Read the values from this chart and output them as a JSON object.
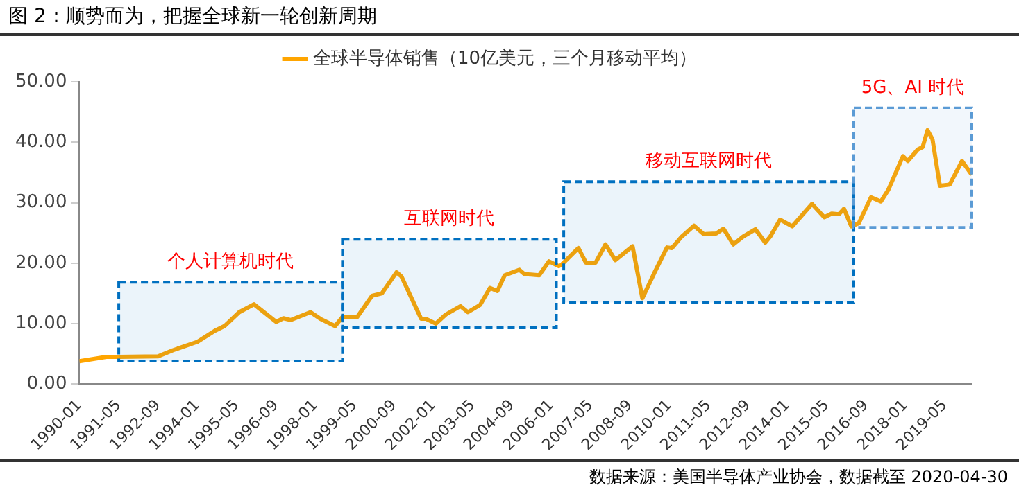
{
  "chart_data": {
    "type": "line",
    "title": "图 2：顺势而为，把握全球新一轮创新周期",
    "x": [
      "1990-01",
      "1990-12",
      "1991-05",
      "1992-09",
      "1993-03",
      "1994-01",
      "1994-08",
      "1994-12",
      "1995-06",
      "1995-12",
      "1996-09",
      "1996-12",
      "1997-03",
      "1997-11",
      "1998-03",
      "1998-09",
      "1998-12",
      "1999-06",
      "1999-12",
      "2000-04",
      "2000-10",
      "2000-12",
      "2001-08",
      "2001-10",
      "2002-02",
      "2002-06",
      "2002-12",
      "2003-03",
      "2003-08",
      "2003-12",
      "2004-03",
      "2004-06",
      "2004-12",
      "2005-02",
      "2005-08",
      "2005-12",
      "2006-04",
      "2006-05",
      "2006-12",
      "2007-03",
      "2007-07",
      "2007-11",
      "2008-03",
      "2008-10",
      "2009-02",
      "2009-07",
      "2009-12",
      "2010-02",
      "2010-06",
      "2010-11",
      "2011-03",
      "2011-08",
      "2011-11",
      "2012-03",
      "2012-07",
      "2012-12",
      "2013-04",
      "2013-06",
      "2013-10",
      "2014-03",
      "2014-11",
      "2015-04",
      "2015-07",
      "2015-10",
      "2015-12",
      "2016-03",
      "2016-06",
      "2016-11",
      "2017-03",
      "2017-06",
      "2017-12",
      "2018-02",
      "2018-06",
      "2018-08",
      "2018-10",
      "2018-12",
      "2019-03",
      "2019-07",
      "2019-12",
      "2020-04"
    ],
    "series": [
      {
        "name": "全球半导体销售（10亿美元，三个月移动平均）",
        "color": "#ffa500",
        "values": [
          3.8,
          4.5,
          4.5,
          4.6,
          5.6,
          7.0,
          8.8,
          9.6,
          11.9,
          13.2,
          10.3,
          10.9,
          10.6,
          11.9,
          10.8,
          9.6,
          11.1,
          11.1,
          14.6,
          15.0,
          18.5,
          17.8,
          10.8,
          10.8,
          10.0,
          11.5,
          12.9,
          11.9,
          13.1,
          15.9,
          15.4,
          18.0,
          18.9,
          18.2,
          18.0,
          20.3,
          19.5,
          19.7,
          22.5,
          20.1,
          20.1,
          23.1,
          20.5,
          22.8,
          14.2,
          18.5,
          22.6,
          22.5,
          24.4,
          26.2,
          24.8,
          24.9,
          25.7,
          23.1,
          24.4,
          25.6,
          23.4,
          24.4,
          27.2,
          26.1,
          29.8,
          27.6,
          28.2,
          28.1,
          29.0,
          26.1,
          26.6,
          30.9,
          30.2,
          32.1,
          37.7,
          36.9,
          38.8,
          39.2,
          42.0,
          40.5,
          32.8,
          33.0,
          36.9,
          34.6
        ]
      }
    ],
    "xlim": [
      "1990-01",
      "2020-04"
    ],
    "xticks": [
      "1990-01",
      "1991-05",
      "1992-09",
      "1994-01",
      "1995-05",
      "1996-09",
      "1998-01",
      "1999-05",
      "2000-09",
      "2002-01",
      "2003-05",
      "2004-09",
      "2006-01",
      "2007-05",
      "2008-09",
      "2010-01",
      "2011-05",
      "2012-09",
      "2014-01",
      "2015-05",
      "2016-09",
      "2018-01",
      "2019-05"
    ],
    "ylim": [
      0,
      50
    ],
    "yticks": [
      {
        "value": 0,
        "label": "0.00"
      },
      {
        "value": 10,
        "label": "10.00"
      },
      {
        "value": 20,
        "label": "20.00"
      },
      {
        "value": 30,
        "label": "30.00"
      },
      {
        "value": 40,
        "label": "40.00"
      },
      {
        "value": 50,
        "label": "50.00"
      }
    ],
    "bands": [
      {
        "axis": "x",
        "from": "1991-05",
        "to": "1998-12",
        "label": "个人计算机时代",
        "color": "#0070c0"
      },
      {
        "axis": "x",
        "from": "1998-12",
        "to": "2006-03",
        "label": "互联网时代",
        "color": "#0070c0"
      },
      {
        "axis": "x",
        "from": "2006-06",
        "to": "2016-04",
        "label": "移动互联网时代",
        "color": "#0070c0"
      },
      {
        "axis": "x",
        "from": "2016-04",
        "to": "2020-04",
        "label": "5G、AI 时代",
        "color": "#5b9bd5"
      }
    ],
    "annotations": [
      "数据来源：美国半导体产业协会，数据截至 2020-04-30"
    ],
    "grid": false,
    "legend": "top",
    "marker": "none",
    "line_style": "solid"
  }
}
